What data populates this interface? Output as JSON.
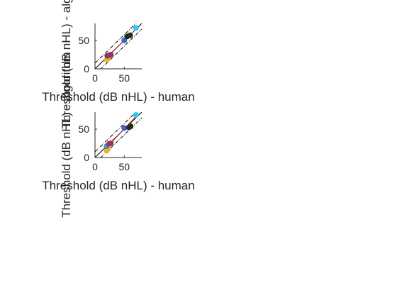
{
  "chart_data": [
    {
      "type": "scatter",
      "title": "",
      "xlabel": "Threshold (dB nHL) - human",
      "ylabel": "Threshold (dB nHL) - algorithm",
      "xlim": [
        0,
        80
      ],
      "ylim": [
        0,
        80
      ],
      "x_ticks": [
        "0",
        "50"
      ],
      "y_ticks": [
        "0",
        "50"
      ],
      "grid": false,
      "reference_lines": [
        {
          "style": "dash-dot",
          "offset": 10
        },
        {
          "style": "dash-dot",
          "offset": -10
        }
      ],
      "points": [
        {
          "x": 20,
          "y": 16,
          "color": "#e8b52a"
        },
        {
          "x": 22,
          "y": 18,
          "color": "#e8b52a"
        },
        {
          "x": 21,
          "y": 23,
          "color": "#6a3a8a"
        },
        {
          "x": 25,
          "y": 24,
          "color": "#a0305a"
        },
        {
          "x": 27,
          "y": 25,
          "color": "#a0305a"
        },
        {
          "x": 50,
          "y": 50,
          "color": "#3a5ed8"
        },
        {
          "x": 55,
          "y": 57,
          "color": "#1a2a10"
        },
        {
          "x": 60,
          "y": 59,
          "color": "#2a2a18"
        },
        {
          "x": 70,
          "y": 72,
          "color": "#2ec8f0"
        }
      ],
      "fit_line": {
        "x0": 18,
        "y0": 18,
        "x1": 70,
        "y1": 70,
        "color": "#b02020"
      }
    },
    {
      "type": "scatter",
      "title": "",
      "xlabel": "Threshold (dB nHL) - human",
      "ylabel": "Threshold (dB nHL) - algorithm",
      "xlim": [
        0,
        80
      ],
      "ylim": [
        0,
        80
      ],
      "x_ticks": [
        "0",
        "50"
      ],
      "y_ticks": [
        "0",
        "50"
      ],
      "grid": false,
      "reference_lines": [
        {
          "style": "dash-dot",
          "offset": 10
        },
        {
          "style": "dash-dot",
          "offset": -10
        }
      ],
      "points": [
        {
          "x": 20,
          "y": 12,
          "color": "#e8b52a"
        },
        {
          "x": 22,
          "y": 15,
          "color": "#e8b52a"
        },
        {
          "x": 20,
          "y": 20,
          "color": "#3a90c0"
        },
        {
          "x": 24,
          "y": 24,
          "color": "#a0305a"
        },
        {
          "x": 27,
          "y": 25,
          "color": "#a0305a"
        },
        {
          "x": 50,
          "y": 52,
          "color": "#3a5ed8"
        },
        {
          "x": 58,
          "y": 53,
          "color": "#2a2a18"
        },
        {
          "x": 61,
          "y": 55,
          "color": "#2a2a18"
        },
        {
          "x": 70,
          "y": 75,
          "color": "#2ec8f0"
        }
      ],
      "fit_line": {
        "x0": 18,
        "y0": 16,
        "x1": 70,
        "y1": 72,
        "color": "#b02020"
      }
    }
  ]
}
